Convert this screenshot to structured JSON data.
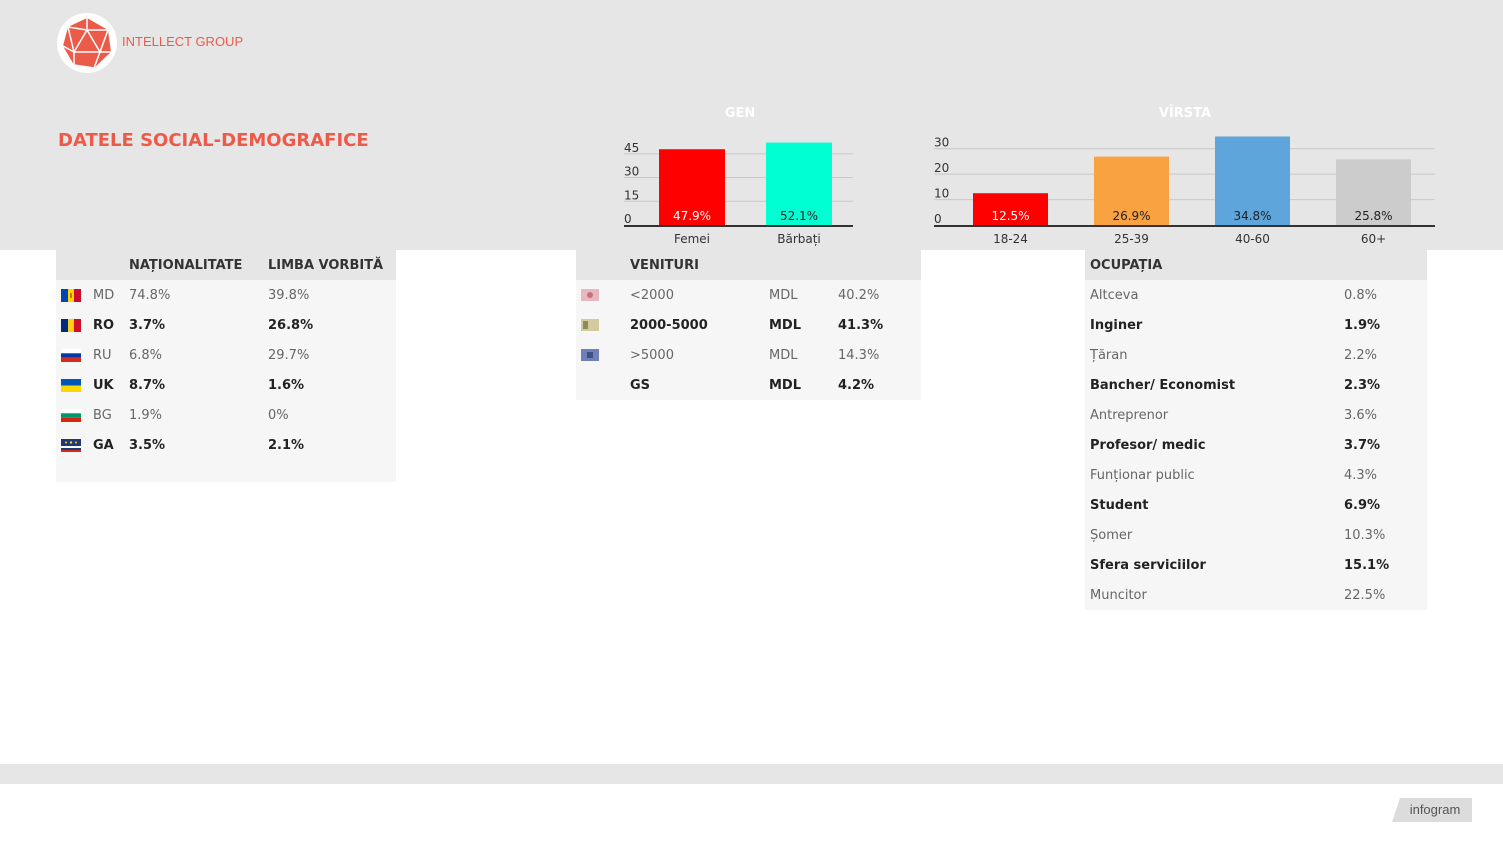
{
  "header": {
    "brand": "INTELLECT GROUP",
    "title": "DATELE SOCIAL-DEMOGRAFICE"
  },
  "colors": {
    "accent": "#ec5b4a",
    "band": "#e6e6e6"
  },
  "chart_data": [
    {
      "type": "bar",
      "title": "GEN",
      "categories": [
        "Femei",
        "Bărbați"
      ],
      "values": [
        47.9,
        52.1
      ],
      "labels": [
        "47.9%",
        "52.1%"
      ],
      "colors": [
        "#ff0000",
        "#00ffd2"
      ],
      "label_colors": [
        "#ffffff",
        "#222222"
      ],
      "yticks": [
        0,
        15,
        30,
        45
      ],
      "ylim": [
        0,
        55
      ],
      "grid": true
    },
    {
      "type": "bar",
      "title": "VÎRSTA",
      "categories": [
        "18-24",
        "25-39",
        "40-60",
        "60+"
      ],
      "values": [
        12.5,
        26.9,
        34.8,
        25.8
      ],
      "labels": [
        "12.5%",
        "26.9%",
        "34.8%",
        "25.8%"
      ],
      "colors": [
        "#ff0000",
        "#f9a242",
        "#5da5da",
        "#cccccc"
      ],
      "label_colors": [
        "#ffffff",
        "#222222",
        "#222222",
        "#222222"
      ],
      "yticks": [
        0,
        10,
        20,
        30
      ],
      "ylim": [
        0,
        35
      ],
      "grid": true
    }
  ],
  "nationality_table": {
    "headers": [
      "",
      "",
      "NAȚIONALITATE",
      "LIMBA VORBITĂ"
    ],
    "rows": [
      {
        "flag": "md-flag",
        "code": "MD",
        "nat": "74.8%",
        "lang": "39.8%"
      },
      {
        "flag": "ro-flag",
        "code": "RO",
        "nat": "3.7%",
        "lang": "26.8%"
      },
      {
        "flag": "ru-flag",
        "code": "RU",
        "nat": "6.8%",
        "lang": "29.7%"
      },
      {
        "flag": "ua-flag",
        "code": "UK",
        "nat": "8.7%",
        "lang": "1.6%"
      },
      {
        "flag": "bg-flag",
        "code": "BG",
        "nat": "1.9%",
        "lang": "0%"
      },
      {
        "flag": "ga-flag",
        "code": "GA",
        "nat": "3.5%",
        "lang": "2.1%"
      }
    ]
  },
  "income_table": {
    "headers": [
      "",
      "VENITURI",
      "",
      ""
    ],
    "rows": [
      {
        "icon": "banknote-pink-icon",
        "range": "<2000",
        "currency": "MDL",
        "pct": "40.2%"
      },
      {
        "icon": "banknote-green-icon",
        "range": "2000-5000",
        "currency": "MDL",
        "pct": "41.3%"
      },
      {
        "icon": "banknote-blue-icon",
        "range": ">5000",
        "currency": "MDL",
        "pct": "14.3%"
      },
      {
        "icon": "",
        "range": "GS",
        "currency": "MDL",
        "pct": "4.2%"
      }
    ]
  },
  "occupation_table": {
    "headers": [
      "OCUPAȚIA",
      ""
    ],
    "rows": [
      {
        "name": "Altceva",
        "pct": "0.8%"
      },
      {
        "name": "Inginer",
        "pct": "1.9%"
      },
      {
        "name": "Țăran",
        "pct": "2.2%"
      },
      {
        "name": "Bancher/ Economist",
        "pct": "2.3%"
      },
      {
        "name": "Antreprenor",
        "pct": "3.6%"
      },
      {
        "name": "Profesor/ medic",
        "pct": "3.7%"
      },
      {
        "name": "Funționar public",
        "pct": "4.3%"
      },
      {
        "name": "Student",
        "pct": "6.9%"
      },
      {
        "name": "Șomer",
        "pct": "10.3%"
      },
      {
        "name": "Sfera serviciilor",
        "pct": "15.1%"
      },
      {
        "name": "Muncitor",
        "pct": "22.5%"
      }
    ]
  },
  "footer": {
    "badge": "infogram"
  }
}
